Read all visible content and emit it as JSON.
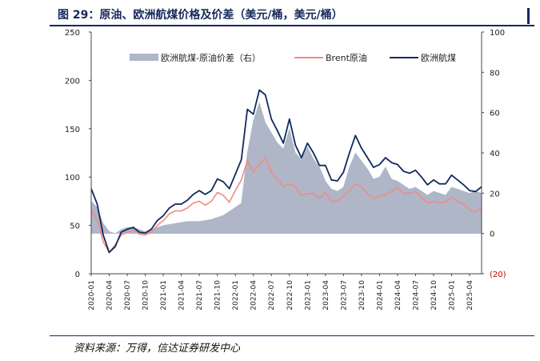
{
  "figure": {
    "title": "图 29：原油、欧洲航煤价格及价差（美元/桶，美元/桶）",
    "source": "资料来源：万得，信达证券研发中心"
  },
  "chart_data": {
    "type": "area+line",
    "dual_axis": true,
    "left_axis": {
      "ylim": [
        0,
        250
      ],
      "ticks": [
        0,
        50,
        100,
        150,
        200,
        250
      ],
      "tick_labels": [
        "0",
        "50",
        "100",
        "150",
        "200",
        "250"
      ]
    },
    "right_axis": {
      "ylim": [
        -20,
        100
      ],
      "ticks": [
        -20,
        0,
        20,
        40,
        60,
        80,
        100
      ],
      "tick_labels": [
        "(20)",
        "0",
        "20",
        "40",
        "60",
        "80",
        "100"
      ]
    },
    "x_tick_labels": [
      "2020-01",
      "2020-04",
      "2020-07",
      "2020-10",
      "2021-01",
      "2021-04",
      "2021-07",
      "2021-10",
      "2022-01",
      "2022-04",
      "2022-07",
      "2022-10",
      "2023-01",
      "2023-04",
      "2023-07",
      "2023-10",
      "2024-01",
      "2024-04",
      "2024-07",
      "2024-10",
      "2025-01",
      "2025-04"
    ],
    "x_start": "2020-01",
    "x_end": "2025-06",
    "legend_position": "top",
    "colors": {
      "spread": "#aeb6c8",
      "brent": "#f28b82",
      "jet": "#0f2a5e",
      "negative_tick": "#c00000"
    },
    "series": [
      {
        "name": "欧洲航煤-原油价差（右）",
        "kind": "area",
        "axis": "right",
        "points": [
          [
            "2020-01",
            16
          ],
          [
            "2020-02",
            13
          ],
          [
            "2020-03",
            5
          ],
          [
            "2020-04",
            1
          ],
          [
            "2020-05",
            0
          ],
          [
            "2020-06",
            2
          ],
          [
            "2020-07",
            3
          ],
          [
            "2020-08",
            3
          ],
          [
            "2020-09",
            2
          ],
          [
            "2020-10",
            1
          ],
          [
            "2020-11",
            2
          ],
          [
            "2020-12",
            3
          ],
          [
            "2021-01",
            4
          ],
          [
            "2021-03",
            5
          ],
          [
            "2021-05",
            6
          ],
          [
            "2021-07",
            6
          ],
          [
            "2021-09",
            7
          ],
          [
            "2021-11",
            9
          ],
          [
            "2022-01",
            13
          ],
          [
            "2022-02",
            15
          ],
          [
            "2022-03",
            40
          ],
          [
            "2022-04",
            56
          ],
          [
            "2022-05",
            65
          ],
          [
            "2022-06",
            55
          ],
          [
            "2022-07",
            50
          ],
          [
            "2022-08",
            45
          ],
          [
            "2022-09",
            42
          ],
          [
            "2022-10",
            52
          ],
          [
            "2022-11",
            40
          ],
          [
            "2022-12",
            37
          ],
          [
            "2023-01",
            43
          ],
          [
            "2023-02",
            37
          ],
          [
            "2023-03",
            33
          ],
          [
            "2023-04",
            26
          ],
          [
            "2023-05",
            22
          ],
          [
            "2023-06",
            21
          ],
          [
            "2023-07",
            23
          ],
          [
            "2023-08",
            33
          ],
          [
            "2023-09",
            40
          ],
          [
            "2023-10",
            36
          ],
          [
            "2023-11",
            32
          ],
          [
            "2023-12",
            27
          ],
          [
            "2024-01",
            28
          ],
          [
            "2024-02",
            33
          ],
          [
            "2024-03",
            27
          ],
          [
            "2024-04",
            26
          ],
          [
            "2024-05",
            24
          ],
          [
            "2024-06",
            22
          ],
          [
            "2024-07",
            23
          ],
          [
            "2024-08",
            21
          ],
          [
            "2024-09",
            19
          ],
          [
            "2024-10",
            21
          ],
          [
            "2024-11",
            20
          ],
          [
            "2024-12",
            19
          ],
          [
            "2025-01",
            23
          ],
          [
            "2025-02",
            22
          ],
          [
            "2025-03",
            21
          ],
          [
            "2025-04",
            20
          ],
          [
            "2025-05",
            21
          ],
          [
            "2025-06",
            20
          ]
        ]
      },
      {
        "name": "Brent原油",
        "kind": "line",
        "axis": "left",
        "points": [
          [
            "2020-01",
            66
          ],
          [
            "2020-02",
            56
          ],
          [
            "2020-03",
            33
          ],
          [
            "2020-04",
            22
          ],
          [
            "2020-05",
            30
          ],
          [
            "2020-06",
            40
          ],
          [
            "2020-07",
            43
          ],
          [
            "2020-08",
            45
          ],
          [
            "2020-09",
            41
          ],
          [
            "2020-10",
            40
          ],
          [
            "2020-11",
            43
          ],
          [
            "2020-12",
            50
          ],
          [
            "2021-01",
            55
          ],
          [
            "2021-02",
            62
          ],
          [
            "2021-03",
            65
          ],
          [
            "2021-04",
            65
          ],
          [
            "2021-05",
            68
          ],
          [
            "2021-06",
            73
          ],
          [
            "2021-07",
            75
          ],
          [
            "2021-08",
            71
          ],
          [
            "2021-09",
            75
          ],
          [
            "2021-10",
            84
          ],
          [
            "2021-11",
            81
          ],
          [
            "2021-12",
            74
          ],
          [
            "2022-01",
            86
          ],
          [
            "2022-02",
            97
          ],
          [
            "2022-03",
            117
          ],
          [
            "2022-04",
            105
          ],
          [
            "2022-05",
            113
          ],
          [
            "2022-06",
            120
          ],
          [
            "2022-07",
            105
          ],
          [
            "2022-08",
            98
          ],
          [
            "2022-09",
            90
          ],
          [
            "2022-10",
            93
          ],
          [
            "2022-11",
            90
          ],
          [
            "2022-12",
            81
          ],
          [
            "2023-01",
            83
          ],
          [
            "2023-02",
            83
          ],
          [
            "2023-03",
            78
          ],
          [
            "2023-04",
            84
          ],
          [
            "2023-05",
            75
          ],
          [
            "2023-06",
            75
          ],
          [
            "2023-07",
            80
          ],
          [
            "2023-08",
            86
          ],
          [
            "2023-09",
            93
          ],
          [
            "2023-10",
            90
          ],
          [
            "2023-11",
            83
          ],
          [
            "2023-12",
            78
          ],
          [
            "2024-01",
            80
          ],
          [
            "2024-02",
            82
          ],
          [
            "2024-03",
            85
          ],
          [
            "2024-04",
            89
          ],
          [
            "2024-05",
            83
          ],
          [
            "2024-06",
            83
          ],
          [
            "2024-07",
            85
          ],
          [
            "2024-08",
            79
          ],
          [
            "2024-09",
            73
          ],
          [
            "2024-10",
            75
          ],
          [
            "2024-11",
            73
          ],
          [
            "2024-12",
            74
          ],
          [
            "2025-01",
            79
          ],
          [
            "2025-02",
            75
          ],
          [
            "2025-03",
            72
          ],
          [
            "2025-04",
            66
          ],
          [
            "2025-05",
            64
          ],
          [
            "2025-06",
            68
          ]
        ]
      },
      {
        "name": "欧洲航煤",
        "kind": "line",
        "axis": "left",
        "points": [
          [
            "2020-01",
            88
          ],
          [
            "2020-02",
            72
          ],
          [
            "2020-03",
            40
          ],
          [
            "2020-04",
            22
          ],
          [
            "2020-05",
            28
          ],
          [
            "2020-06",
            43
          ],
          [
            "2020-07",
            46
          ],
          [
            "2020-08",
            48
          ],
          [
            "2020-09",
            43
          ],
          [
            "2020-10",
            42
          ],
          [
            "2020-11",
            46
          ],
          [
            "2020-12",
            55
          ],
          [
            "2021-01",
            60
          ],
          [
            "2021-02",
            68
          ],
          [
            "2021-03",
            72
          ],
          [
            "2021-04",
            72
          ],
          [
            "2021-05",
            76
          ],
          [
            "2021-06",
            82
          ],
          [
            "2021-07",
            86
          ],
          [
            "2021-08",
            82
          ],
          [
            "2021-09",
            86
          ],
          [
            "2021-10",
            98
          ],
          [
            "2021-11",
            95
          ],
          [
            "2021-12",
            88
          ],
          [
            "2022-01",
            103
          ],
          [
            "2022-02",
            118
          ],
          [
            "2022-03",
            170
          ],
          [
            "2022-04",
            165
          ],
          [
            "2022-05",
            190
          ],
          [
            "2022-06",
            185
          ],
          [
            "2022-07",
            160
          ],
          [
            "2022-08",
            148
          ],
          [
            "2022-09",
            135
          ],
          [
            "2022-10",
            160
          ],
          [
            "2022-11",
            133
          ],
          [
            "2022-12",
            120
          ],
          [
            "2023-01",
            135
          ],
          [
            "2023-02",
            125
          ],
          [
            "2023-03",
            112
          ],
          [
            "2023-04",
            112
          ],
          [
            "2023-05",
            97
          ],
          [
            "2023-06",
            96
          ],
          [
            "2023-07",
            105
          ],
          [
            "2023-08",
            125
          ],
          [
            "2023-09",
            143
          ],
          [
            "2023-10",
            130
          ],
          [
            "2023-11",
            120
          ],
          [
            "2023-12",
            110
          ],
          [
            "2024-01",
            113
          ],
          [
            "2024-02",
            120
          ],
          [
            "2024-03",
            115
          ],
          [
            "2024-04",
            113
          ],
          [
            "2024-05",
            106
          ],
          [
            "2024-06",
            104
          ],
          [
            "2024-07",
            107
          ],
          [
            "2024-08",
            100
          ],
          [
            "2024-09",
            92
          ],
          [
            "2024-10",
            97
          ],
          [
            "2024-11",
            93
          ],
          [
            "2024-12",
            93
          ],
          [
            "2025-01",
            102
          ],
          [
            "2025-02",
            97
          ],
          [
            "2025-03",
            92
          ],
          [
            "2025-04",
            86
          ],
          [
            "2025-05",
            85
          ],
          [
            "2025-06",
            90
          ]
        ]
      }
    ]
  }
}
